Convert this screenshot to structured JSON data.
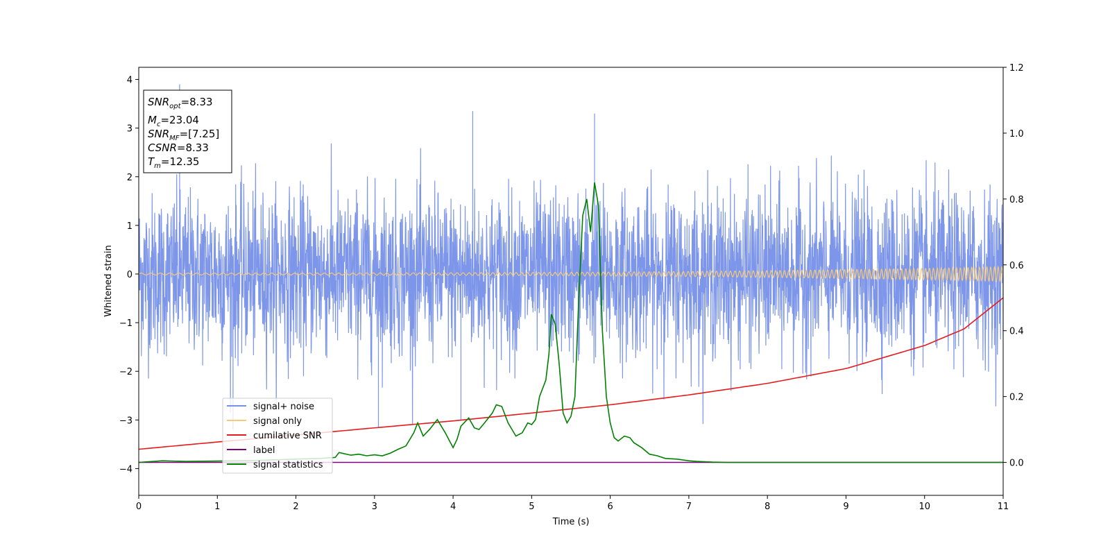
{
  "chart_data": {
    "type": "line",
    "xlabel": "Time (s)",
    "ylabel": "Whitened strain",
    "xlim": [
      0,
      11
    ],
    "ylim_left": [
      -4.55,
      4.25
    ],
    "ylim_right": [
      -0.1,
      1.2
    ],
    "x_ticks": [
      0,
      1,
      2,
      3,
      4,
      5,
      6,
      7,
      8,
      9,
      10,
      11
    ],
    "y_ticks_left": [
      -4,
      -3,
      -2,
      -1,
      0,
      1,
      2,
      3,
      4
    ],
    "y_ticks_right": [
      0.0,
      0.2,
      0.4,
      0.6,
      0.8,
      1.0,
      1.2
    ],
    "legend_position": "lower-left",
    "grid": false,
    "info_box": {
      "snr_opt": "=8.33",
      "mc": "=23.04",
      "snr_mf": "=[7.25]",
      "csnr": "=8.33",
      "tm": "=12.35"
    },
    "series": [
      {
        "name": "signal+ noise",
        "axis": "left",
        "color": "#7690e8",
        "style": "noise",
        "description_range": [
          -3.2,
          3.9
        ],
        "peaks": [
          [
            0.52,
            3.9
          ],
          [
            4.25,
            3.35
          ],
          [
            5.8,
            3.3
          ],
          [
            1.2,
            -3.2
          ],
          [
            3.05,
            -3.15
          ],
          [
            4.1,
            -3.0
          ]
        ]
      },
      {
        "name": "signal only",
        "axis": "left",
        "color": "#f5c97a",
        "style": "chirp",
        "amplitude_start": 0.02,
        "amplitude_end": 0.15
      },
      {
        "name": "cumilative SNR",
        "axis": "right",
        "color": "#e41a1c",
        "x": [
          0,
          1,
          2,
          3,
          4,
          5,
          6,
          7,
          8,
          9,
          10,
          10.5,
          11
        ],
        "y": [
          0.04,
          0.062,
          0.083,
          0.105,
          0.126,
          0.15,
          0.175,
          0.205,
          0.24,
          0.285,
          0.355,
          0.405,
          0.5
        ]
      },
      {
        "name": "label",
        "axis": "right",
        "color": "#800080",
        "x": [
          0,
          11
        ],
        "y": [
          0.0,
          0.0
        ]
      },
      {
        "name": "signal statistics",
        "axis": "right",
        "color": "#008000",
        "x": [
          0,
          0.3,
          0.6,
          1.0,
          1.5,
          2.0,
          2.3,
          2.5,
          2.55,
          2.7,
          2.8,
          2.9,
          3.0,
          3.1,
          3.2,
          3.3,
          3.4,
          3.5,
          3.55,
          3.62,
          3.7,
          3.8,
          3.9,
          4.0,
          4.05,
          4.1,
          4.2,
          4.27,
          4.33,
          4.4,
          4.5,
          4.55,
          4.62,
          4.7,
          4.8,
          4.88,
          4.95,
          5.0,
          5.05,
          5.1,
          5.18,
          5.22,
          5.25,
          5.3,
          5.35,
          5.4,
          5.45,
          5.5,
          5.55,
          5.6,
          5.65,
          5.7,
          5.75,
          5.8,
          5.85,
          5.9,
          5.95,
          6.0,
          6.05,
          6.1,
          6.18,
          6.25,
          6.3,
          6.4,
          6.5,
          6.6,
          6.7,
          6.85,
          7.0,
          7.1,
          7.2,
          7.3,
          7.5,
          11.0
        ],
        "y": [
          0.0,
          0.005,
          0.003,
          0.004,
          0.006,
          0.01,
          0.012,
          0.015,
          0.03,
          0.022,
          0.025,
          0.02,
          0.023,
          0.02,
          0.028,
          0.04,
          0.05,
          0.09,
          0.12,
          0.08,
          0.1,
          0.13,
          0.09,
          0.045,
          0.07,
          0.11,
          0.135,
          0.105,
          0.1,
          0.12,
          0.15,
          0.175,
          0.17,
          0.12,
          0.08,
          0.09,
          0.12,
          0.115,
          0.13,
          0.2,
          0.25,
          0.33,
          0.45,
          0.42,
          0.3,
          0.15,
          0.12,
          0.14,
          0.2,
          0.5,
          0.75,
          0.8,
          0.7,
          0.85,
          0.78,
          0.4,
          0.2,
          0.12,
          0.075,
          0.065,
          0.08,
          0.075,
          0.06,
          0.045,
          0.025,
          0.02,
          0.012,
          0.01,
          0.005,
          0.003,
          0.002,
          0.001,
          0.0,
          0.0
        ]
      }
    ]
  }
}
